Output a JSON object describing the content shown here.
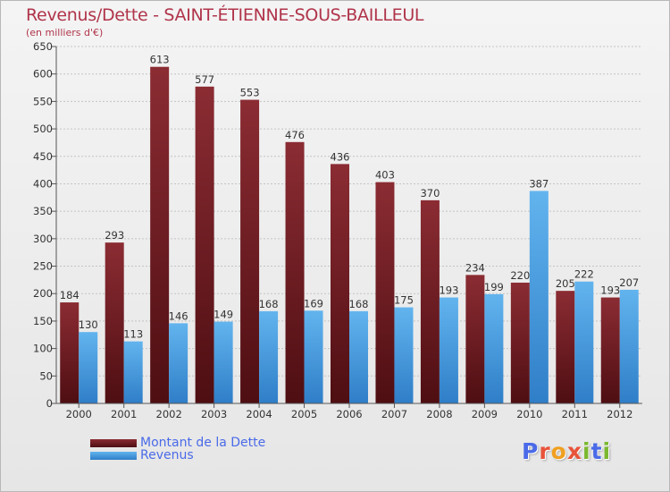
{
  "title": "Revenus/Dette - SAINT-ÉTIENNE-SOUS-BAILLEUL",
  "subtitle": "(en milliers d'€)",
  "logo": {
    "text": "Proxiti",
    "letter_colors": [
      "#4a6ae8",
      "#e8533a",
      "#f0a020",
      "#e8533a",
      "#7ab82e",
      "#4a6ae8",
      "#7ab82e"
    ]
  },
  "colors": {
    "dette_top": "#8b2c33",
    "dette_bottom": "#4e0e12",
    "revenus_top": "#62b4ee",
    "revenus_bottom": "#2f7ec8"
  },
  "chart_data": {
    "type": "bar",
    "title": "Revenus/Dette - SAINT-ÉTIENNE-SOUS-BAILLEUL",
    "ylabel": "(en milliers d'€)",
    "categories": [
      "2000",
      "2001",
      "2002",
      "2003",
      "2004",
      "2005",
      "2006",
      "2007",
      "2008",
      "2009",
      "2010",
      "2011",
      "2012"
    ],
    "series": [
      {
        "name": "Montant de la Dette",
        "values": [
          184,
          293,
          613,
          577,
          553,
          476,
          436,
          403,
          370,
          234,
          220,
          205,
          193
        ]
      },
      {
        "name": "Revenus",
        "values": [
          130,
          113,
          146,
          149,
          168,
          169,
          168,
          175,
          193,
          199,
          387,
          222,
          207
        ]
      }
    ],
    "ylim": [
      0,
      650
    ],
    "yticks": [
      0,
      50,
      100,
      150,
      200,
      250,
      300,
      350,
      400,
      450,
      500,
      550,
      600,
      650
    ],
    "grid": true,
    "legend_position": "bottom-left"
  }
}
